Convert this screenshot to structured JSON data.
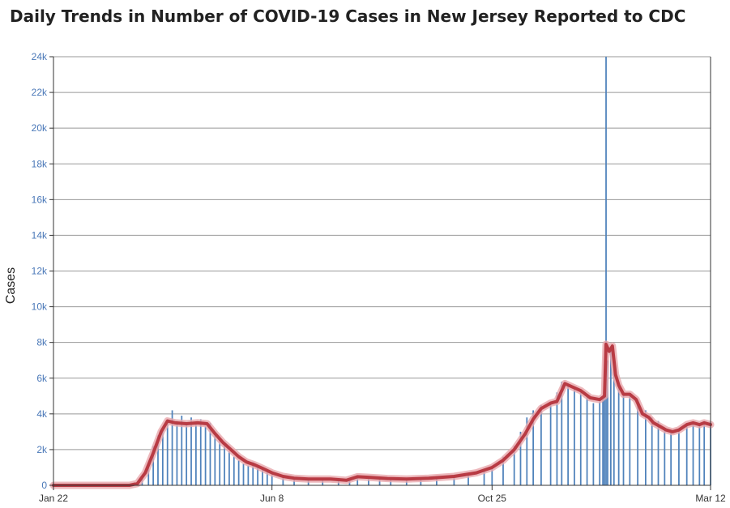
{
  "title": "Daily Trends in Number of COVID-19 Cases in New Jersey Reported to CDC",
  "colors": {
    "bars": "#4f82bb",
    "moving_average": "#b83b44",
    "moving_average_glow": "#e8a8ad",
    "grid": "#999999",
    "axis_text": "#4a78b8"
  },
  "chart_data": {
    "type": "bar",
    "title": "Daily Trends in Number of COVID-19 Cases in New Jersey Reported to CDC",
    "xlabel": "",
    "ylabel": "Cases",
    "ylim": [
      0,
      24000
    ],
    "yticks": [
      0,
      2000,
      4000,
      6000,
      8000,
      10000,
      12000,
      14000,
      16000,
      18000,
      20000,
      22000,
      24000
    ],
    "ytick_labels": [
      "0",
      "2k",
      "4k",
      "6k",
      "8k",
      "10k",
      "12k",
      "14k",
      "16k",
      "18k",
      "20k",
      "22k",
      "24k"
    ],
    "x_start": "2020-01-22",
    "x_end": "2021-03-12",
    "xticks": [
      "2020-01-22",
      "2020-06-08",
      "2020-10-25",
      "2021-03-12"
    ],
    "xtick_labels": [
      "Jan 22",
      "Jun 8",
      "Oct 25",
      "Mar 12"
    ],
    "grid": true,
    "series": [
      {
        "kind": "bar",
        "points": [
          [
            "2020-01-22",
            0
          ],
          [
            "2020-02-25",
            0
          ],
          [
            "2020-03-10",
            10
          ],
          [
            "2020-03-15",
            100
          ],
          [
            "2020-03-18",
            400
          ],
          [
            "2020-03-22",
            1000
          ],
          [
            "2020-03-25",
            2200
          ],
          [
            "2020-03-28",
            2800
          ],
          [
            "2020-03-31",
            3200
          ],
          [
            "2020-04-03",
            3700
          ],
          [
            "2020-04-06",
            4200
          ],
          [
            "2020-04-09",
            3600
          ],
          [
            "2020-04-12",
            3900
          ],
          [
            "2020-04-15",
            3500
          ],
          [
            "2020-04-18",
            3800
          ],
          [
            "2020-04-21",
            3400
          ],
          [
            "2020-04-24",
            3700
          ],
          [
            "2020-04-27",
            3300
          ],
          [
            "2020-04-30",
            3500
          ],
          [
            "2020-05-03",
            2900
          ],
          [
            "2020-05-06",
            2500
          ],
          [
            "2020-05-09",
            2200
          ],
          [
            "2020-05-12",
            1900
          ],
          [
            "2020-05-15",
            1600
          ],
          [
            "2020-05-18",
            1400
          ],
          [
            "2020-05-21",
            1200
          ],
          [
            "2020-05-24",
            1100
          ],
          [
            "2020-05-27",
            1300
          ],
          [
            "2020-05-30",
            1000
          ],
          [
            "2020-06-02",
            900
          ],
          [
            "2020-06-05",
            800
          ],
          [
            "2020-06-08",
            600
          ],
          [
            "2020-06-15",
            450
          ],
          [
            "2020-06-22",
            380
          ],
          [
            "2020-07-01",
            300
          ],
          [
            "2020-07-10",
            320
          ],
          [
            "2020-07-20",
            300
          ],
          [
            "2020-07-27",
            250
          ],
          [
            "2020-08-01",
            450
          ],
          [
            "2020-08-08",
            400
          ],
          [
            "2020-08-15",
            380
          ],
          [
            "2020-08-22",
            350
          ],
          [
            "2020-09-01",
            300
          ],
          [
            "2020-09-10",
            350
          ],
          [
            "2020-09-20",
            400
          ],
          [
            "2020-10-01",
            500
          ],
          [
            "2020-10-10",
            650
          ],
          [
            "2020-10-20",
            800
          ],
          [
            "2020-10-25",
            1100
          ],
          [
            "2020-11-01",
            1600
          ],
          [
            "2020-11-08",
            2200
          ],
          [
            "2020-11-12",
            3000
          ],
          [
            "2020-11-16",
            3800
          ],
          [
            "2020-11-20",
            4200
          ],
          [
            "2020-11-25",
            4500
          ],
          [
            "2020-12-01",
            4600
          ],
          [
            "2020-12-05",
            5200
          ],
          [
            "2020-12-08",
            5800
          ],
          [
            "2020-12-12",
            5600
          ],
          [
            "2020-12-16",
            5400
          ],
          [
            "2020-12-20",
            5200
          ],
          [
            "2020-12-24",
            5000
          ],
          [
            "2020-12-28",
            4600
          ],
          [
            "2021-01-01",
            4700
          ],
          [
            "2021-01-03",
            5000
          ],
          [
            "2021-01-04",
            5300
          ],
          [
            "2021-01-05",
            24000
          ],
          [
            "2021-01-06",
            7000
          ],
          [
            "2021-01-08",
            7500
          ],
          [
            "2021-01-10",
            6500
          ],
          [
            "2021-01-13",
            5600
          ],
          [
            "2021-01-16",
            5200
          ],
          [
            "2021-01-20",
            5100
          ],
          [
            "2021-01-25",
            4800
          ],
          [
            "2021-01-30",
            4200
          ],
          [
            "2021-02-03",
            3800
          ],
          [
            "2021-02-07",
            3600
          ],
          [
            "2021-02-11",
            3200
          ],
          [
            "2021-02-15",
            3000
          ],
          [
            "2021-02-20",
            3100
          ],
          [
            "2021-02-25",
            3400
          ],
          [
            "2021-03-01",
            3500
          ],
          [
            "2021-03-05",
            3400
          ],
          [
            "2021-03-08",
            3600
          ],
          [
            "2021-03-12",
            3500
          ]
        ]
      },
      {
        "kind": "line",
        "points": [
          [
            "2020-01-22",
            0
          ],
          [
            "2020-03-10",
            0
          ],
          [
            "2020-03-15",
            100
          ],
          [
            "2020-03-20",
            700
          ],
          [
            "2020-03-25",
            1800
          ],
          [
            "2020-03-30",
            3000
          ],
          [
            "2020-04-03",
            3600
          ],
          [
            "2020-04-08",
            3500
          ],
          [
            "2020-04-15",
            3450
          ],
          [
            "2020-04-22",
            3500
          ],
          [
            "2020-04-28",
            3450
          ],
          [
            "2020-05-03",
            2900
          ],
          [
            "2020-05-08",
            2400
          ],
          [
            "2020-05-13",
            2000
          ],
          [
            "2020-05-18",
            1600
          ],
          [
            "2020-05-23",
            1300
          ],
          [
            "2020-05-28",
            1150
          ],
          [
            "2020-06-02",
            950
          ],
          [
            "2020-06-08",
            700
          ],
          [
            "2020-06-15",
            500
          ],
          [
            "2020-06-22",
            400
          ],
          [
            "2020-07-01",
            350
          ],
          [
            "2020-07-15",
            350
          ],
          [
            "2020-07-25",
            280
          ],
          [
            "2020-08-01",
            480
          ],
          [
            "2020-08-08",
            450
          ],
          [
            "2020-08-20",
            380
          ],
          [
            "2020-09-01",
            350
          ],
          [
            "2020-09-15",
            400
          ],
          [
            "2020-10-01",
            500
          ],
          [
            "2020-10-15",
            700
          ],
          [
            "2020-10-25",
            1000
          ],
          [
            "2020-11-01",
            1400
          ],
          [
            "2020-11-08",
            2000
          ],
          [
            "2020-11-15",
            2900
          ],
          [
            "2020-11-20",
            3700
          ],
          [
            "2020-11-25",
            4300
          ],
          [
            "2020-12-01",
            4600
          ],
          [
            "2020-12-05",
            4700
          ],
          [
            "2020-12-10",
            5700
          ],
          [
            "2020-12-15",
            5500
          ],
          [
            "2020-12-20",
            5300
          ],
          [
            "2020-12-26",
            4900
          ],
          [
            "2021-01-01",
            4800
          ],
          [
            "2021-01-04",
            5000
          ],
          [
            "2021-01-05",
            7900
          ],
          [
            "2021-01-07",
            7500
          ],
          [
            "2021-01-09",
            7800
          ],
          [
            "2021-01-11",
            6200
          ],
          [
            "2021-01-13",
            5600
          ],
          [
            "2021-01-16",
            5100
          ],
          [
            "2021-01-20",
            5100
          ],
          [
            "2021-01-24",
            4800
          ],
          [
            "2021-01-28",
            4000
          ],
          [
            "2021-02-01",
            3800
          ],
          [
            "2021-02-04",
            3500
          ],
          [
            "2021-02-08",
            3300
          ],
          [
            "2021-02-12",
            3100
          ],
          [
            "2021-02-16",
            3000
          ],
          [
            "2021-02-20",
            3100
          ],
          [
            "2021-02-25",
            3400
          ],
          [
            "2021-03-01",
            3500
          ],
          [
            "2021-03-05",
            3400
          ],
          [
            "2021-03-08",
            3500
          ],
          [
            "2021-03-12",
            3400
          ]
        ]
      }
    ]
  }
}
